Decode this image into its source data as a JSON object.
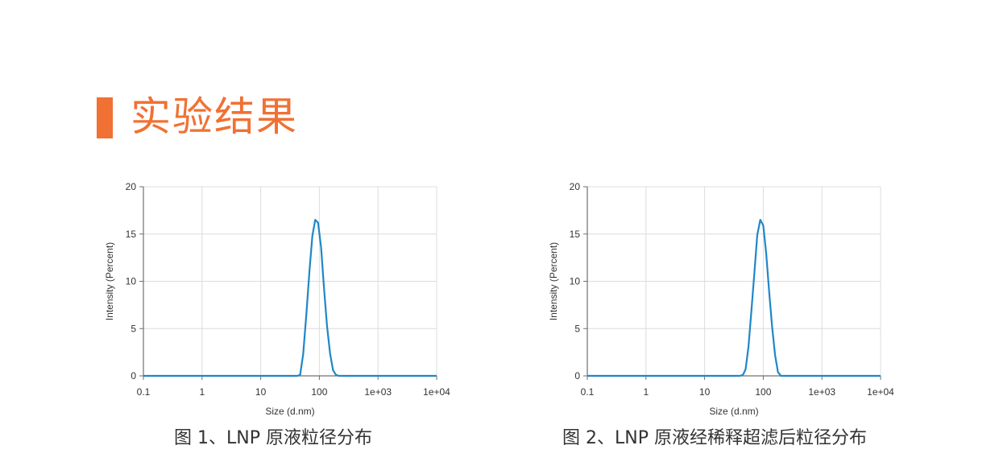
{
  "section": {
    "title": "实验结果",
    "accent_color": "#f07133"
  },
  "chart_data": [
    {
      "type": "line",
      "caption": "图 1、LNP 原液粒径分布",
      "xlabel": "Size (d.nm)",
      "ylabel": "Intensity (Percent)",
      "xscale": "log",
      "xlim": [
        0.1,
        10000
      ],
      "ylim": [
        0,
        20
      ],
      "xticks": [
        "0.1",
        "1",
        "10",
        "100",
        "1e+03",
        "1e+04"
      ],
      "yticks": [
        "0",
        "5",
        "10",
        "15",
        "20"
      ],
      "grid": true,
      "line_color": "#1f87c8",
      "series": [
        {
          "x": [
            0.1,
            1,
            10,
            42,
            47,
            53,
            60,
            68,
            76,
            85,
            95,
            107,
            120,
            135,
            152,
            171,
            192,
            216,
            243,
            273,
            10000
          ],
          "y": [
            0,
            0,
            0,
            0,
            0.1,
            2.3,
            6.5,
            11.2,
            14.8,
            16.5,
            16.2,
            13.6,
            9.3,
            5.3,
            2.4,
            0.6,
            0.1,
            0,
            0,
            0,
            0
          ]
        }
      ]
    },
    {
      "type": "line",
      "caption": "图 2、LNP 原液经稀释超滤后粒径分布",
      "xlabel": "Size (d.nm)",
      "ylabel": "Intensity (Percent)",
      "xscale": "log",
      "xlim": [
        0.1,
        10000
      ],
      "ylim": [
        0,
        20
      ],
      "xticks": [
        "0.1",
        "1",
        "10",
        "100",
        "1e+03",
        "1e+04"
      ],
      "yticks": [
        "0",
        "5",
        "10",
        "15",
        "20"
      ],
      "grid": true,
      "line_color": "#1f87c8",
      "series": [
        {
          "x": [
            0.1,
            1,
            10,
            40,
            45,
            50,
            56,
            63,
            71,
            79,
            89,
            100,
            112,
            126,
            141,
            159,
            178,
            200,
            225,
            252,
            10000
          ],
          "y": [
            0,
            0,
            0,
            0,
            0.1,
            0.7,
            3.1,
            7.0,
            11.1,
            14.9,
            16.5,
            15.9,
            13.0,
            8.9,
            5.3,
            2.2,
            0.4,
            0,
            0,
            0,
            0
          ]
        }
      ]
    }
  ]
}
